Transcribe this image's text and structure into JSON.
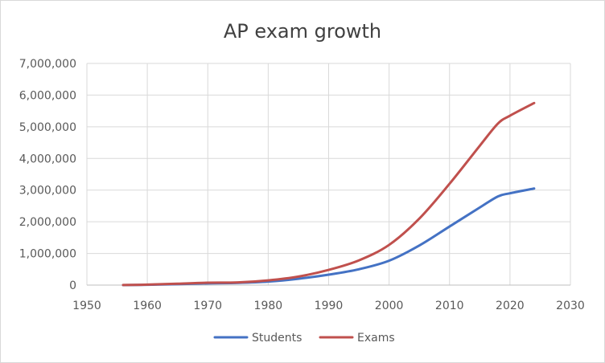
{
  "chart_data": {
    "type": "line",
    "title": "AP exam growth",
    "xlabel": "",
    "ylabel": "",
    "xlim": [
      1950,
      2030
    ],
    "ylim": [
      0,
      7000000
    ],
    "x_ticks": [
      1950,
      1960,
      1970,
      1980,
      1990,
      2000,
      2010,
      2020,
      2030
    ],
    "y_ticks": [
      0,
      1000000,
      2000000,
      3000000,
      4000000,
      5000000,
      6000000,
      7000000
    ],
    "x_tick_labels": [
      "1950",
      "1960",
      "1970",
      "1980",
      "1990",
      "2000",
      "2010",
      "2020",
      "2030"
    ],
    "y_tick_labels": [
      "0",
      "1,000,000",
      "2,000,000",
      "3,000,000",
      "4,000,000",
      "5,000,000",
      "6,000,000",
      "7,000,000"
    ],
    "grid": true,
    "legend_position": "bottom",
    "series": [
      {
        "name": "Students",
        "color": "#4472c4",
        "x": [
          1956,
          1960,
          1965,
          1970,
          1975,
          1980,
          1985,
          1990,
          1995,
          2000,
          2005,
          2010,
          2015,
          2018,
          2020,
          2024
        ],
        "y": [
          1200,
          10000,
          30000,
          55000,
          70000,
          110000,
          200000,
          330000,
          500000,
          770000,
          1250000,
          1850000,
          2450000,
          2800000,
          2900000,
          3050000
        ]
      },
      {
        "name": "Exams",
        "color": "#c0504d",
        "x": [
          1956,
          1960,
          1965,
          1970,
          1975,
          1980,
          1985,
          1990,
          1995,
          2000,
          2005,
          2010,
          2015,
          2018,
          2020,
          2024
        ],
        "y": [
          2200,
          15000,
          45000,
          75000,
          85000,
          150000,
          270000,
          480000,
          780000,
          1270000,
          2100000,
          3200000,
          4400000,
          5100000,
          5350000,
          5750000
        ]
      }
    ]
  }
}
